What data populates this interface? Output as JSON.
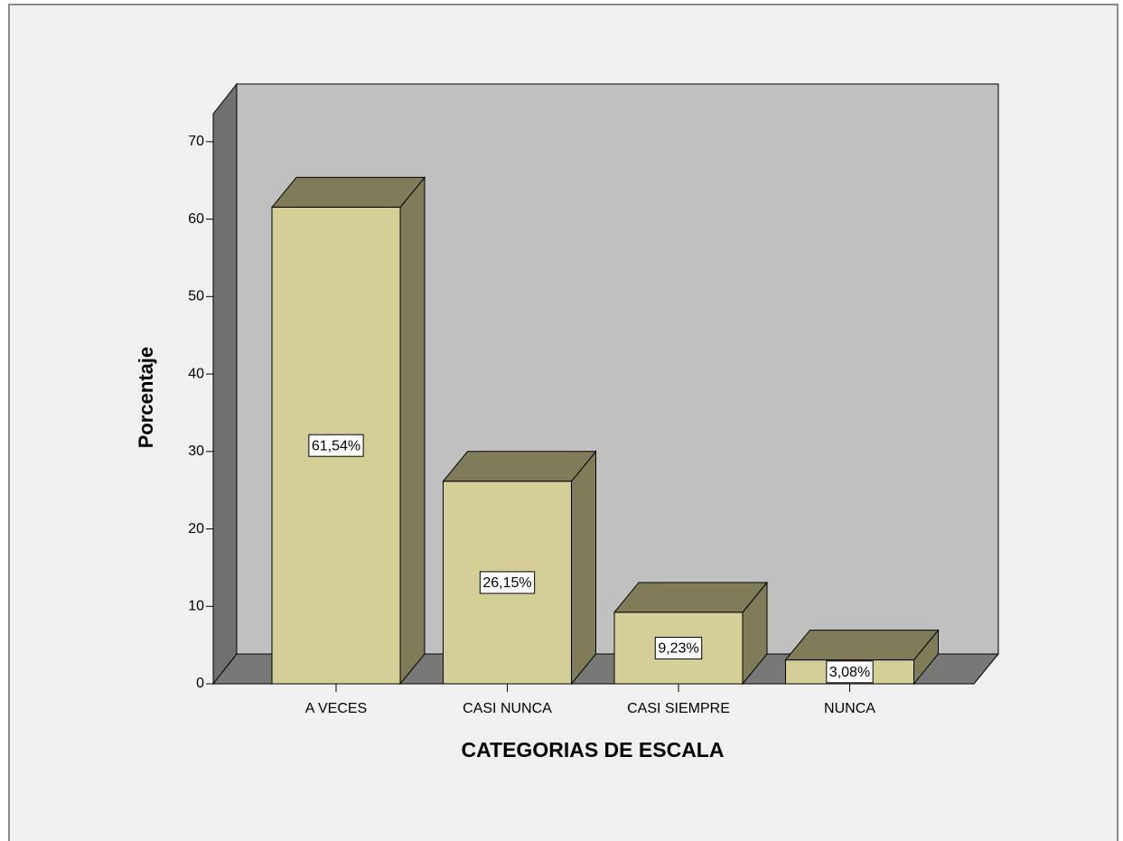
{
  "chart_data": {
    "type": "bar",
    "x_label": "CATEGORIAS DE ESCALA",
    "y_label": "Porcentaje",
    "categories": [
      "A VECES",
      "CASI NUNCA",
      "CASI SIEMPRE",
      "NUNCA"
    ],
    "values": [
      61.54,
      26.15,
      9.23,
      3.08
    ],
    "value_labels": [
      "61,54%",
      "26,15%",
      "9,23%",
      "3,08%"
    ],
    "color": "#d4cf96",
    "ylim": [
      0,
      73.6
    ],
    "yticks": [
      0,
      10,
      20,
      30,
      40,
      50,
      60,
      70
    ]
  }
}
